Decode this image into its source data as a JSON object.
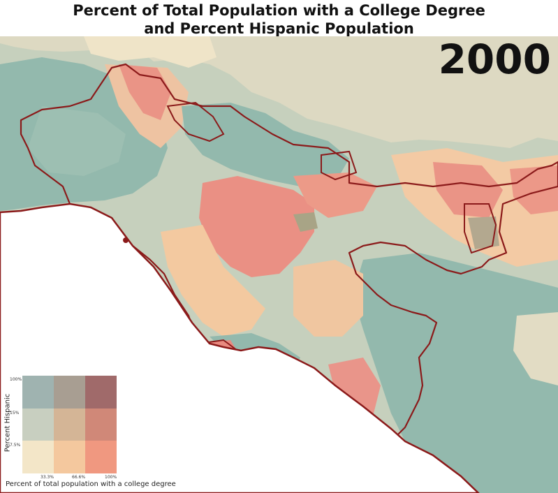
{
  "title_line1": "Percent of Total Population with a College Degree",
  "title_line2": "and Percent Hispanic Population",
  "year": "2000",
  "legend": {
    "y_label": "Percent Hispanic",
    "x_label": "Percent of total population with a college degree",
    "y_ticks": [
      "100%",
      "15%",
      "7.5%"
    ],
    "x_ticks": [
      "33.3%",
      "66.6%",
      "100%"
    ],
    "cells": [
      [
        "#9fb3b0",
        "#a89e92",
        "#a06a6a"
      ],
      [
        "#c8cfc0",
        "#d4b596",
        "#d08878"
      ],
      [
        "#f3e6c8",
        "#f4c89e",
        "#f09880"
      ]
    ]
  },
  "colors": {
    "teal": "#93b9ad",
    "sage": "#c8d3bd",
    "beige": "#e4dcc4",
    "peach": "#f4cba2",
    "salmon": "#ec9384",
    "taupe": "#b7ab92",
    "olive": "#a9a487",
    "boundary": "#8b1a1a",
    "ocean": "#ffffff"
  }
}
